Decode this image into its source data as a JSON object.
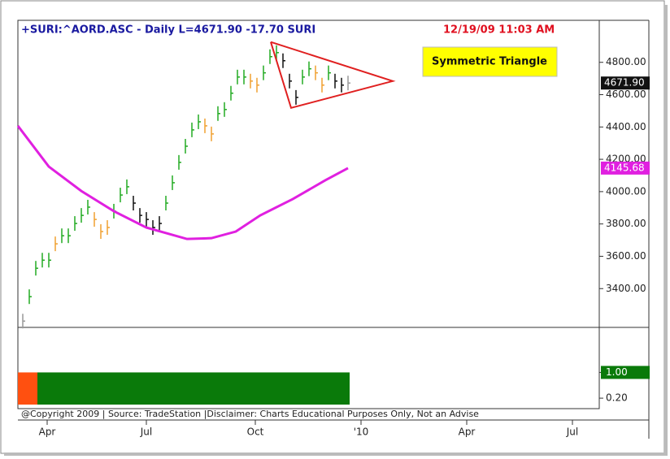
{
  "chart_data": {
    "type": "bar",
    "title": "+SURI:^AORD.ASC - Daily  L=4671.90  -17.70  SURI",
    "timestamp": "12/19/09 11:03 AM",
    "footer": "@Copyright 2009 | Source: TradeStation |Disclaimer: Charts Educational Purposes Only, Not an Advise",
    "annotation": "Symmetric Triangle",
    "xlim": [
      -3,
      354.5
    ],
    "xticks": [
      {
        "value": 15,
        "label": "Apr"
      },
      {
        "value": 76,
        "label": "Jul"
      },
      {
        "value": 143,
        "label": "Oct"
      },
      {
        "value": 208,
        "label": "'10"
      },
      {
        "value": 273,
        "label": "Apr"
      },
      {
        "value": 338,
        "label": "Jul"
      }
    ],
    "ylim": [
      3160,
      5060
    ],
    "yticks": [
      {
        "value": 3400,
        "label": "3400.00"
      },
      {
        "value": 3600,
        "label": "3600.00"
      },
      {
        "value": 3800,
        "label": "3800.00"
      },
      {
        "value": 4000,
        "label": "4000.00"
      },
      {
        "value": 4200,
        "label": "4200.00"
      },
      {
        "value": 4400,
        "label": "4400.00"
      },
      {
        "value": 4600,
        "label": "4600.00"
      },
      {
        "value": 4800,
        "label": "4800.00"
      }
    ],
    "series": [
      {
        "name": "^AORD.ASC",
        "x": [
          0,
          4,
          8,
          12,
          16,
          20,
          24,
          28,
          32,
          36,
          40,
          44,
          48,
          52,
          56,
          60,
          64,
          68,
          72,
          76,
          80,
          84,
          88,
          92,
          96,
          100,
          104,
          108,
          112,
          116,
          120,
          124,
          128,
          132,
          136,
          140,
          144,
          148,
          152,
          156,
          160,
          164,
          168,
          172,
          176,
          180,
          184,
          188,
          192,
          196,
          200
        ],
        "values": [
          3199,
          3350,
          3526,
          3576,
          3576,
          3677,
          3727,
          3727,
          3803,
          3853,
          3904,
          3828,
          3753,
          3778,
          3879,
          3979,
          4030,
          3929,
          3853,
          3828,
          3778,
          3803,
          3929,
          4055,
          4181,
          4281,
          4382,
          4432,
          4407,
          4357,
          4483,
          4508,
          4609,
          4709,
          4709,
          4684,
          4659,
          4735,
          4835,
          4860,
          4810,
          4684,
          4583,
          4709,
          4760,
          4735,
          4659,
          4735,
          4684,
          4659,
          4671.9
        ],
        "colors": [
          "#999999",
          "#22aa22",
          "#22aa22",
          "#22aa22",
          "#22aa22",
          "#f0a030",
          "#22aa22",
          "#22aa22",
          "#22aa22",
          "#22aa22",
          "#22aa22",
          "#f0a030",
          "#f0a030",
          "#f0a030",
          "#22aa22",
          "#22aa22",
          "#22aa22",
          "#111111",
          "#111111",
          "#111111",
          "#111111",
          "#111111",
          "#22aa22",
          "#22aa22",
          "#22aa22",
          "#22aa22",
          "#22aa22",
          "#22aa22",
          "#f0a030",
          "#f0a030",
          "#22aa22",
          "#22aa22",
          "#22aa22",
          "#22aa22",
          "#22aa22",
          "#f0a030",
          "#f0a030",
          "#22aa22",
          "#22aa22",
          "#22aa22",
          "#111111",
          "#111111",
          "#111111",
          "#22aa22",
          "#22aa22",
          "#f0a030",
          "#f0a030",
          "#22aa22",
          "#111111",
          "#111111",
          "#999999"
        ],
        "value_labels": {
          "50": "4671.90"
        }
      },
      {
        "name": "SURI",
        "type": "line",
        "color": "#e020e0",
        "x": [
          -3,
          16,
          36,
          56,
          76,
          101,
          116,
          131,
          146,
          166,
          186,
          200
        ],
        "values": [
          4407,
          4155,
          4004,
          3879,
          3778,
          3707,
          3712,
          3753,
          3853,
          3954,
          4070,
          4145.68
        ],
        "last_label": "4145.68"
      }
    ],
    "triangle": {
      "color": "#e02020",
      "x": [
        152.5,
        227.5,
        165
      ],
      "values": [
        4926,
        4684,
        4518
      ]
    },
    "indicator": {
      "ylim": [
        -0.05,
        2.4
      ],
      "yticks": [
        {
          "value": 1,
          "label": "1.00"
        },
        {
          "value": 0.2,
          "label": "0.20"
        }
      ],
      "segments": [
        {
          "color": "#ff5010",
          "x": [
            -3,
            9
          ],
          "value": 1
        },
        {
          "color": "#0a7a0a",
          "x": [
            9,
            201
          ],
          "value": 1
        }
      ]
    }
  }
}
